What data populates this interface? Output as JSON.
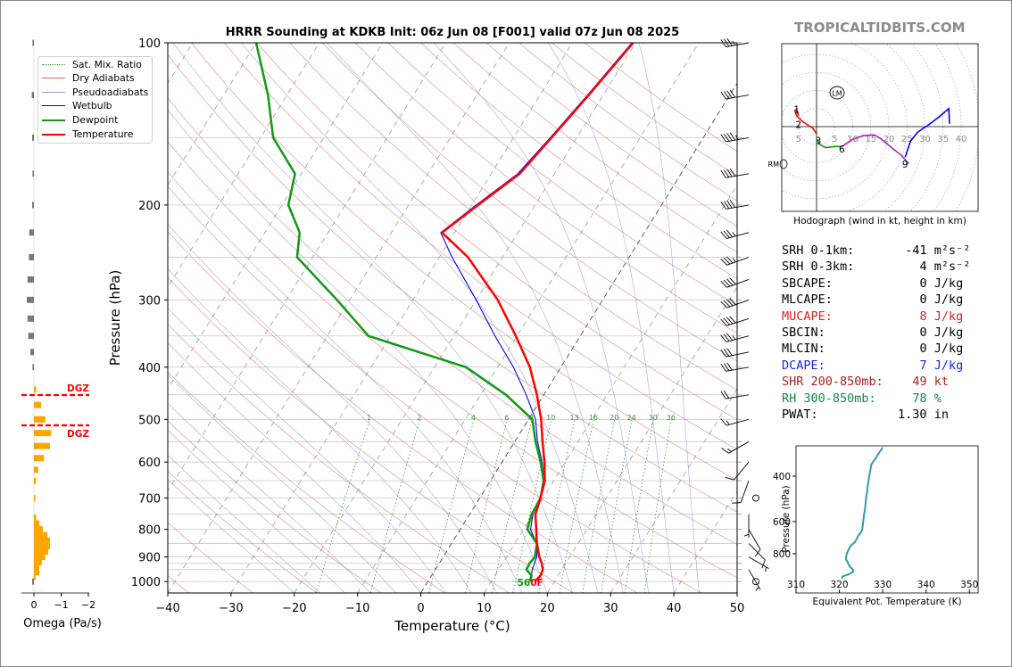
{
  "title": "HRRR Sounding at KDKB Init: 06z Jun 08 [F001] valid 07z Jun 08 2025",
  "brand": "TROPICALTIDBITS.COM",
  "colors": {
    "temperature": "#ff0000",
    "dewpoint": "#119911",
    "wetbulb": "#0000ff",
    "dry_adiabat": "#e06666",
    "pseudoadiabat": "#8888dd",
    "mixing_ratio": "#339933",
    "isotherm": "#888888",
    "omega": "#ffa500",
    "dgz": "#ff0000",
    "theta_e": "#3399aa",
    "mucape": "#dd2222",
    "dcape": "#2222dd",
    "shr": "#aa2222",
    "rh": "#118844"
  },
  "legend": [
    {
      "label": "Sat. Mix. Ratio",
      "style": "dotted",
      "color": "#339933"
    },
    {
      "label": "Dry Adiabats",
      "style": "solid",
      "color": "#e06666"
    },
    {
      "label": "Pseudoadiabats",
      "style": "solid",
      "color": "#8888dd"
    },
    {
      "label": "Wetbulb",
      "style": "solid",
      "color": "#0000ff"
    },
    {
      "label": "Dewpoint",
      "style": "thick",
      "color": "#119911"
    },
    {
      "label": "Temperature",
      "style": "thick",
      "color": "#ff0000"
    }
  ],
  "chart_data": [
    {
      "type": "line",
      "name": "skew-t",
      "xlabel": "Temperature (°C)",
      "ylabel": "Pressure (hPa)",
      "xlim": [
        -40,
        50
      ],
      "ylim": [
        1050,
        100
      ],
      "yscale": "log",
      "x_ticks": [
        "−40",
        "−30",
        "−20",
        "−10",
        "0",
        "10",
        "20",
        "30",
        "40",
        "50"
      ],
      "y_ticks": [
        "100",
        "200",
        "300",
        "400",
        "500",
        "600",
        "700",
        "800",
        "900",
        "1000"
      ],
      "mixing_ratio_labels": [
        "1",
        "2",
        "4",
        "6",
        "8",
        "10",
        "13",
        "16",
        "20",
        "24",
        "30",
        "36"
      ],
      "surface_label": "56",
      "surface_label_suffix": "0F",
      "series": [
        {
          "name": "Temperature",
          "points": [
            [
              1000,
              16.9
            ],
            [
              975,
              17.2
            ],
            [
              950,
              17.0
            ],
            [
              925,
              16.2
            ],
            [
              900,
              15.2
            ],
            [
              850,
              13.5
            ],
            [
              800,
              12.0
            ],
            [
              750,
              10.4
            ],
            [
              700,
              9.6
            ],
            [
              650,
              8.6
            ],
            [
              600,
              6.7
            ],
            [
              550,
              4.4
            ],
            [
              500,
              2.0
            ],
            [
              450,
              -1.1
            ],
            [
              400,
              -4.9
            ],
            [
              350,
              -10.2
            ],
            [
              300,
              -16.6
            ],
            [
              250,
              -25.5
            ],
            [
              225,
              -32.0
            ],
            [
              200,
              -29.0
            ],
            [
              175,
              -25.5
            ],
            [
              150,
              -24.0
            ],
            [
              125,
              -22.3
            ],
            [
              100,
              -20.4
            ]
          ]
        },
        {
          "name": "Dewpoint",
          "points": [
            [
              1000,
              16.1
            ],
            [
              975,
              15.8
            ],
            [
              950,
              14.4
            ],
            [
              925,
              14.3
            ],
            [
              900,
              14.5
            ],
            [
              850,
              13.5
            ],
            [
              800,
              10.6
            ],
            [
              750,
              9.8
            ],
            [
              700,
              9.6
            ],
            [
              650,
              8.4
            ],
            [
              600,
              6.1
            ],
            [
              550,
              3.3
            ],
            [
              500,
              0.6
            ],
            [
              450,
              -6.0
            ],
            [
              400,
              -15.0
            ],
            [
              350,
              -33.5
            ],
            [
              300,
              -42.0
            ],
            [
              250,
              -52.5
            ],
            [
              225,
              -54.5
            ],
            [
              200,
              -59.0
            ],
            [
              175,
              -61.0
            ],
            [
              150,
              -68.0
            ],
            [
              125,
              -73.0
            ],
            [
              100,
              -80.0
            ]
          ]
        },
        {
          "name": "Wetbulb",
          "points": [
            [
              1000,
              16.3
            ],
            [
              950,
              15.3
            ],
            [
              900,
              14.8
            ],
            [
              850,
              13.5
            ],
            [
              800,
              11.1
            ],
            [
              750,
              10.0
            ],
            [
              700,
              9.6
            ],
            [
              650,
              8.5
            ],
            [
              600,
              6.3
            ],
            [
              550,
              3.6
            ],
            [
              500,
              1.1
            ],
            [
              450,
              -2.8
            ],
            [
              400,
              -7.5
            ],
            [
              350,
              -13.5
            ],
            [
              300,
              -20.0
            ],
            [
              250,
              -28.0
            ],
            [
              225,
              -32.2
            ],
            [
              200,
              -29.3
            ],
            [
              175,
              -25.8
            ],
            [
              150,
              -24.2
            ],
            [
              125,
              -22.5
            ],
            [
              100,
              -20.6
            ]
          ]
        }
      ]
    },
    {
      "type": "bar",
      "name": "omega",
      "xlabel": "Omega (Pa/s)",
      "x_ticks": [
        "0",
        "−1",
        "−2"
      ],
      "dgz_label": "DGZ",
      "dgz_levels": [
        455,
        520
      ],
      "bars": [
        {
          "p": 1000,
          "v": -0.05
        },
        {
          "p": 980,
          "v": 0.05
        },
        {
          "p": 960,
          "v": 0.15
        },
        {
          "p": 940,
          "v": 0.15
        },
        {
          "p": 920,
          "v": 0.22
        },
        {
          "p": 900,
          "v": 0.32
        },
        {
          "p": 880,
          "v": 0.4
        },
        {
          "p": 860,
          "v": 0.45
        },
        {
          "p": 840,
          "v": 0.45
        },
        {
          "p": 820,
          "v": 0.38
        },
        {
          "p": 800,
          "v": 0.25
        },
        {
          "p": 780,
          "v": 0.15
        },
        {
          "p": 760,
          "v": 0.06
        },
        {
          "p": 700,
          "v": 0.04
        },
        {
          "p": 650,
          "v": 0.06
        },
        {
          "p": 620,
          "v": 0.12
        },
        {
          "p": 590,
          "v": 0.28
        },
        {
          "p": 560,
          "v": 0.45
        },
        {
          "p": 530,
          "v": 0.48
        },
        {
          "p": 500,
          "v": 0.32
        },
        {
          "p": 470,
          "v": 0.2
        },
        {
          "p": 440,
          "v": 0.06
        },
        {
          "p": 400,
          "v": -0.04
        },
        {
          "p": 375,
          "v": -0.1
        },
        {
          "p": 350,
          "v": -0.16
        },
        {
          "p": 325,
          "v": -0.18
        },
        {
          "p": 300,
          "v": -0.2
        },
        {
          "p": 275,
          "v": -0.18
        },
        {
          "p": 250,
          "v": -0.14
        },
        {
          "p": 225,
          "v": -0.13
        },
        {
          "p": 200,
          "v": -0.05
        },
        {
          "p": 175,
          "v": -0.04
        },
        {
          "p": 150,
          "v": -0.05
        },
        {
          "p": 125,
          "v": -0.06
        },
        {
          "p": 100,
          "v": -0.04
        }
      ]
    },
    {
      "type": "line",
      "name": "hodograph",
      "xlabel": "Hodograph (wind in kt, height in km)",
      "ring_labels": [
        "5",
        "5",
        "10",
        "15",
        "20",
        "25",
        "30",
        "35",
        "40"
      ],
      "height_labels": [
        {
          "label": "1",
          "u": -5.5,
          "v": 4.8
        },
        {
          "label": "2",
          "u": -5,
          "v": 0.6
        },
        {
          "label": "3",
          "u": 0.5,
          "v": -3.8
        },
        {
          "label": "6",
          "u": 7,
          "v": -6.2
        },
        {
          "label": "9",
          "u": 24.5,
          "v": -10.4
        }
      ],
      "lm_label": "LM",
      "rm_label": "RM",
      "segments": [
        {
          "color": "#ff0000",
          "points": [
            [
              0,
              -2
            ],
            [
              -1,
              -0.5
            ],
            [
              -2.5,
              0.5
            ],
            [
              -4,
              1.5
            ],
            [
              -5.5,
              3
            ],
            [
              -6,
              4.5
            ],
            [
              -5.5,
              4.8
            ],
            [
              -5,
              3
            ]
          ]
        },
        {
          "color": "#119911",
          "points": [
            [
              0,
              -3.5
            ],
            [
              1,
              -5
            ],
            [
              2.5,
              -5.8
            ],
            [
              5,
              -5.5
            ],
            [
              7,
              -5.5
            ]
          ]
        },
        {
          "color": "#aa22cc",
          "points": [
            [
              7,
              -5.5
            ],
            [
              10,
              -3.5
            ],
            [
              13,
              -2.5
            ],
            [
              16,
              -2.3
            ],
            [
              18,
              -3.5
            ],
            [
              21,
              -6
            ],
            [
              23.5,
              -8
            ],
            [
              25.5,
              -10.3
            ]
          ]
        },
        {
          "color": "#0000ff",
          "points": [
            [
              24.5,
              -8.5
            ],
            [
              26,
              -4
            ],
            [
              28,
              -1.5
            ],
            [
              31,
              0.5
            ],
            [
              34,
              2.8
            ],
            [
              36.6,
              5
            ],
            [
              36.8,
              0.8
            ]
          ]
        }
      ]
    },
    {
      "type": "line",
      "name": "theta-e",
      "xlabel": "Equivalent Pot. Temperature (K)",
      "ylabel": "Pressure (hPa)",
      "x_ticks": [
        "310",
        "320",
        "330",
        "340",
        "350"
      ],
      "y_ticks": [
        "400",
        "600",
        "800"
      ],
      "xlim": [
        310,
        352
      ],
      "ylim": [
        1000,
        310
      ],
      "points": [
        [
          1000,
          320.6
        ],
        [
          980,
          320.7
        ],
        [
          960,
          322.2
        ],
        [
          940,
          323.2
        ],
        [
          920,
          323.1
        ],
        [
          900,
          322.5
        ],
        [
          880,
          322.1
        ],
        [
          860,
          321.9
        ],
        [
          840,
          321.5
        ],
        [
          820,
          321.6
        ],
        [
          800,
          321.7
        ],
        [
          780,
          322.0
        ],
        [
          760,
          322.3
        ],
        [
          740,
          322.8
        ],
        [
          720,
          323.6
        ],
        [
          700,
          324.0
        ],
        [
          680,
          324.4
        ],
        [
          660,
          325.0
        ],
        [
          640,
          325.3
        ],
        [
          620,
          325.4
        ],
        [
          600,
          325.5
        ],
        [
          580,
          325.6
        ],
        [
          560,
          325.7
        ],
        [
          540,
          325.9
        ],
        [
          520,
          326.0
        ],
        [
          500,
          326.1
        ],
        [
          480,
          326.2
        ],
        [
          460,
          326.4
        ],
        [
          440,
          326.5
        ],
        [
          420,
          326.7
        ],
        [
          400,
          326.9
        ],
        [
          380,
          327.1
        ],
        [
          360,
          327.4
        ],
        [
          340,
          328.4
        ],
        [
          320,
          329.4
        ],
        [
          310,
          330.0
        ]
      ]
    }
  ],
  "stats": [
    {
      "label": "SRH 0-1km:",
      "value": "-41",
      "unit": "m²s⁻²",
      "color": "#000000"
    },
    {
      "label": "SRH 0-3km:",
      "value": "4",
      "unit": "m²s⁻²",
      "color": "#000000"
    },
    {
      "label": "SBCAPE:",
      "value": "0",
      "unit": "J/kg",
      "color": "#000000"
    },
    {
      "label": "MLCAPE:",
      "value": "0",
      "unit": "J/kg",
      "color": "#000000"
    },
    {
      "label": "MUCAPE:",
      "value": "8",
      "unit": "J/kg",
      "color": "#dd2222"
    },
    {
      "label": "SBCIN:",
      "value": "0",
      "unit": "J/kg",
      "color": "#000000"
    },
    {
      "label": "MLCIN:",
      "value": "0",
      "unit": "J/kg",
      "color": "#000000"
    },
    {
      "label": "DCAPE:",
      "value": "7",
      "unit": "J/kg",
      "color": "#2222dd"
    },
    {
      "label": "SHR 200-850mb:",
      "value": "49",
      "unit": "kt",
      "color": "#aa2222"
    },
    {
      "label": "RH 300-850mb:",
      "value": "78",
      "unit": "%",
      "color": "#118844"
    },
    {
      "label": "PWAT:",
      "value": "1.30",
      "unit": "in",
      "color": "#000000"
    }
  ],
  "winds": [
    {
      "p": 1000,
      "spd": 0,
      "dir": 0
    },
    {
      "p": 950,
      "spd": 3,
      "dir": 330
    },
    {
      "p": 900,
      "spd": 5,
      "dir": 300
    },
    {
      "p": 850,
      "spd": 10,
      "dir": 315
    },
    {
      "p": 800,
      "spd": 10,
      "dir": 330
    },
    {
      "p": 750,
      "spd": 5,
      "dir": 0
    },
    {
      "p": 700,
      "spd": 0,
      "dir": 0
    },
    {
      "p": 650,
      "spd": 10,
      "dir": 20
    },
    {
      "p": 600,
      "spd": 10,
      "dir": 40
    },
    {
      "p": 550,
      "spd": 15,
      "dir": 60
    },
    {
      "p": 500,
      "spd": 15,
      "dir": 75
    },
    {
      "p": 450,
      "spd": 20,
      "dir": 80
    },
    {
      "p": 400,
      "spd": 30,
      "dir": 80
    },
    {
      "p": 375,
      "spd": 30,
      "dir": 78
    },
    {
      "p": 350,
      "spd": 35,
      "dir": 75
    },
    {
      "p": 325,
      "spd": 40,
      "dir": 72
    },
    {
      "p": 300,
      "spd": 40,
      "dir": 70
    },
    {
      "p": 275,
      "spd": 40,
      "dir": 70
    },
    {
      "p": 250,
      "spd": 35,
      "dir": 70
    },
    {
      "p": 225,
      "spd": 35,
      "dir": 75
    },
    {
      "p": 200,
      "spd": 40,
      "dir": 80
    },
    {
      "p": 175,
      "spd": 40,
      "dir": 80
    },
    {
      "p": 150,
      "spd": 45,
      "dir": 80
    },
    {
      "p": 125,
      "spd": 40,
      "dir": 80
    },
    {
      "p": 100,
      "spd": 35,
      "dir": 80
    }
  ]
}
